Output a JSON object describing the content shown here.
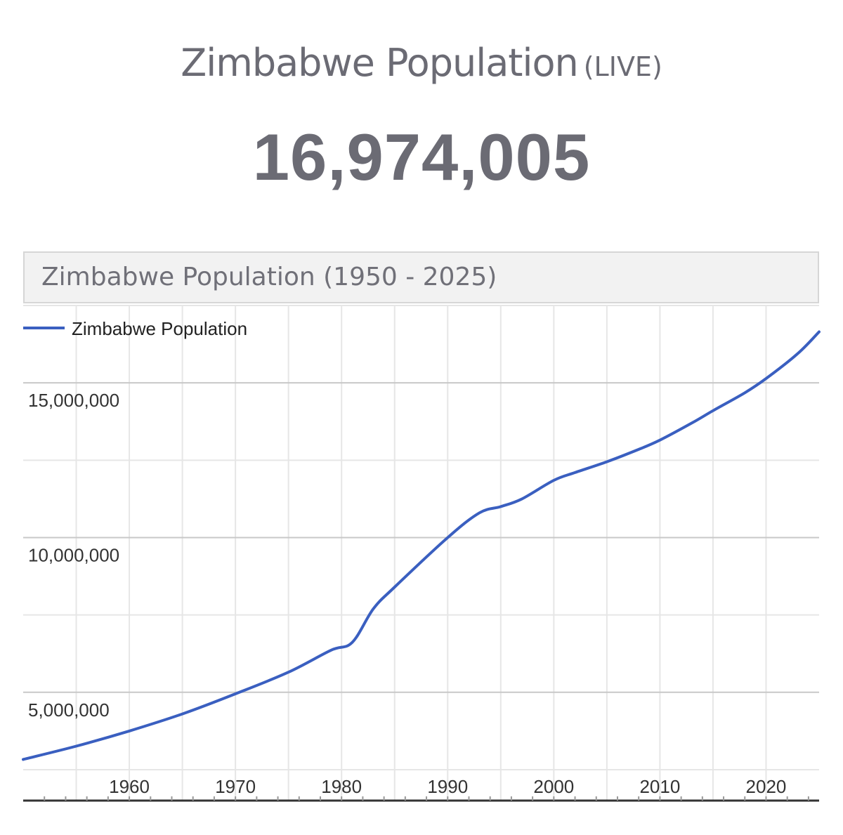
{
  "header": {
    "title": "Zimbabwe Population",
    "live_tag": "(LIVE)",
    "counter": "16,974,005"
  },
  "chart_box": {
    "title": "Zimbabwe Population (1950 - 2025)"
  },
  "colors": {
    "line": "#3a5fc0",
    "grid_major": "#c8c8c8",
    "grid_minor": "#e6e6e6",
    "text": "#333333",
    "heading": "#6b6b74"
  },
  "chart_data": {
    "type": "line",
    "title": "Zimbabwe Population (1950 - 2025)",
    "xlabel": "",
    "ylabel": "",
    "xlim": [
      1950,
      2025
    ],
    "ylim": [
      1500000,
      17500000
    ],
    "x_ticks": [
      1960,
      1970,
      1980,
      1990,
      2000,
      2010,
      2020
    ],
    "x_tick_labels": [
      "1960",
      "1970",
      "1980",
      "1990",
      "2000",
      "2010",
      "2020"
    ],
    "y_ticks": [
      5000000,
      10000000,
      15000000
    ],
    "y_tick_labels": [
      "5,000,000",
      "10,000,000",
      "15,000,000"
    ],
    "grid": true,
    "legend": "top-left",
    "series": [
      {
        "name": "Zimbabwe Population",
        "x": [
          1950,
          1955,
          1960,
          1965,
          1970,
          1975,
          1979,
          1981,
          1983,
          1985,
          1990,
          1993,
          1995,
          1997,
          2000,
          2002,
          2005,
          2008,
          2010,
          2013,
          2015,
          2018,
          2020,
          2023,
          2025
        ],
        "values": [
          2830000,
          3260000,
          3750000,
          4300000,
          4950000,
          5650000,
          6360000,
          6610000,
          7700000,
          8400000,
          10000000,
          10800000,
          11000000,
          11250000,
          11850000,
          12100000,
          12450000,
          12850000,
          13150000,
          13700000,
          14100000,
          14680000,
          15140000,
          15950000,
          16650000
        ]
      }
    ]
  }
}
